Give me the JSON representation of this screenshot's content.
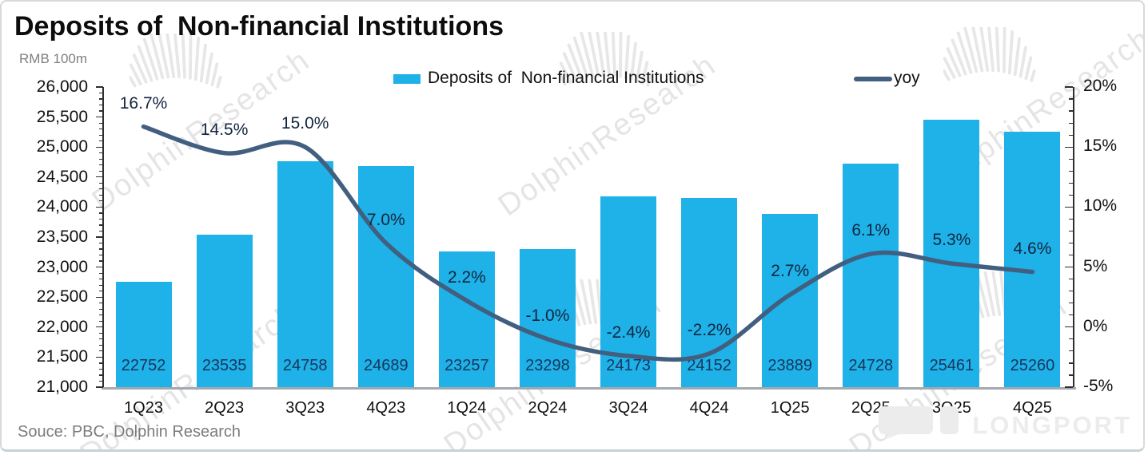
{
  "header": {
    "title": "Deposits of  Non-financial Institutions",
    "unit_label": "RMB 100m"
  },
  "legend": {
    "bar": {
      "label": "Deposits of  Non-financial Institutions",
      "color": "#1eb2e8"
    },
    "line": {
      "label": "yoy",
      "color": "#425f80"
    }
  },
  "source_note": "Souce: PBC, Dolphin Research",
  "watermark": {
    "text": "DolphinResearch",
    "brand": "LONGPORT"
  },
  "colors": {
    "bar": "#1eb2e8",
    "line": "#425f80",
    "bar_value_label": "#17365d",
    "axis_text": "#111111",
    "muted_text": "#7f7f7f"
  },
  "chart_data": {
    "type": "bar",
    "title": "Deposits of  Non-financial Institutions",
    "subtitle": "RMB 100m",
    "legend_position": "top",
    "grid": false,
    "categories": [
      "1Q23",
      "2Q23",
      "3Q23",
      "4Q23",
      "1Q24",
      "2Q24",
      "3Q24",
      "4Q24",
      "1Q25",
      "2Q25",
      "3Q25",
      "4Q25"
    ],
    "series": [
      {
        "name": "Deposits of  Non-financial Institutions",
        "type": "bar",
        "axis": "left",
        "color": "#1eb2e8",
        "values": [
          22752,
          23535,
          24758,
          24689,
          23257,
          23298,
          24173,
          24152,
          23889,
          24728,
          25461,
          25260
        ]
      },
      {
        "name": "yoy",
        "type": "line",
        "axis": "right",
        "color": "#425f80",
        "values": [
          16.7,
          14.5,
          15.0,
          7.0,
          2.2,
          -1.0,
          -2.4,
          -2.2,
          2.7,
          6.1,
          5.3,
          4.6
        ]
      }
    ],
    "left_axis": {
      "min": 21000,
      "max": 26000,
      "step": 500,
      "minor_step": 100,
      "labels": [
        "26,000",
        "25,500",
        "25,000",
        "24,500",
        "24,000",
        "23,500",
        "23,000",
        "22,500",
        "22,000",
        "21,500",
        "21,000"
      ]
    },
    "right_axis": {
      "min": -5,
      "max": 20,
      "step": 5,
      "minor_step": 1,
      "suffix": "%",
      "labels": [
        "20%",
        "15%",
        "10%",
        "5%",
        "0%",
        "-5%"
      ]
    }
  }
}
